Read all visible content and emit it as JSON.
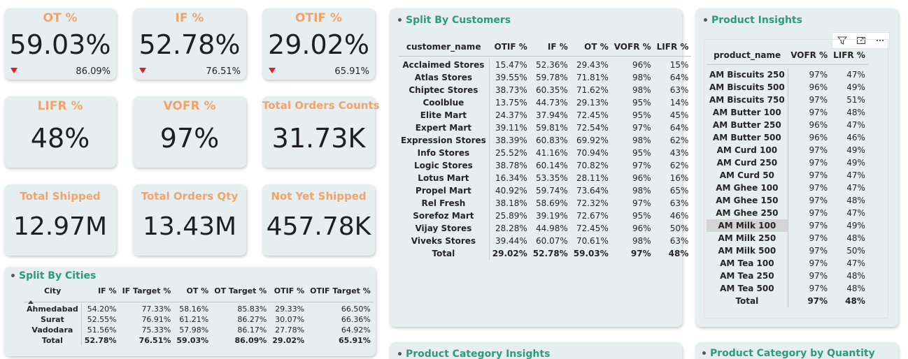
{
  "kpis": {
    "ot": {
      "title": "OT %",
      "value": "59.03%",
      "target": "86.09%"
    },
    "if": {
      "title": "IF %",
      "value": "52.78%",
      "target": "76.51%"
    },
    "otif": {
      "title": "OTIF %",
      "value": "29.02%",
      "target": "65.91%"
    },
    "lifr": {
      "title": "LIFR %",
      "value": "48%"
    },
    "vofr": {
      "title": "VOFR %",
      "value": "97%"
    },
    "total_orders_counts": {
      "title": "Total Orders Counts",
      "value": "31.73K"
    },
    "total_shipped": {
      "title": "Total Shipped",
      "value": "12.97M"
    },
    "total_orders_qty": {
      "title": "Total Orders Qty",
      "value": "13.43M"
    },
    "not_yet_shipped": {
      "title": "Not Yet Shipped",
      "value": "457.78K"
    }
  },
  "colors": {
    "kpi_title": "#f0a46c",
    "visual_title": "#2e9b78",
    "card_bg": "#e7eef0",
    "down_arrow": "#e51c23"
  },
  "split_by_cities": {
    "title": "Split By Cities",
    "headers": [
      "City",
      "IF %",
      "IF Target %",
      "OT %",
      "OT Target %",
      "OTIF %",
      "OTIF Target %"
    ],
    "rows": [
      [
        "Ahmedabad",
        "54.20%",
        "77.33%",
        "58.16%",
        "85.83%",
        "29.33%",
        "66.50%"
      ],
      [
        "Surat",
        "52.55%",
        "76.91%",
        "61.21%",
        "86.27%",
        "30.07%",
        "66.36%"
      ],
      [
        "Vadodara",
        "51.56%",
        "75.33%",
        "57.98%",
        "86.17%",
        "27.78%",
        "64.92%"
      ]
    ],
    "total": [
      "Total",
      "52.78%",
      "76.51%",
      "59.03%",
      "86.09%",
      "29.02%",
      "65.91%"
    ]
  },
  "split_by_customers": {
    "title": "Split By Customers",
    "headers": [
      "customer_name",
      "OTIF %",
      "IF %",
      "OT %",
      "VOFR %",
      "LIFR %"
    ],
    "rows": [
      [
        "Acclaimed Stores",
        "15.47%",
        "52.36%",
        "29.43%",
        "96%",
        "15%"
      ],
      [
        "Atlas Stores",
        "39.55%",
        "59.78%",
        "71.81%",
        "98%",
        "64%"
      ],
      [
        "Chiptec Stores",
        "38.73%",
        "60.35%",
        "71.62%",
        "98%",
        "63%"
      ],
      [
        "Coolblue",
        "13.75%",
        "44.73%",
        "29.13%",
        "95%",
        "14%"
      ],
      [
        "Elite Mart",
        "24.37%",
        "37.94%",
        "72.45%",
        "95%",
        "45%"
      ],
      [
        "Expert Mart",
        "39.11%",
        "59.81%",
        "72.54%",
        "97%",
        "64%"
      ],
      [
        "Expression Stores",
        "38.39%",
        "60.83%",
        "69.92%",
        "98%",
        "62%"
      ],
      [
        "Info Stores",
        "25.52%",
        "41.16%",
        "70.94%",
        "95%",
        "43%"
      ],
      [
        "Logic Stores",
        "38.78%",
        "60.14%",
        "70.82%",
        "97%",
        "62%"
      ],
      [
        "Lotus Mart",
        "16.34%",
        "53.35%",
        "28.11%",
        "96%",
        "16%"
      ],
      [
        "Propel Mart",
        "40.92%",
        "59.74%",
        "73.64%",
        "98%",
        "65%"
      ],
      [
        "Rel Fresh",
        "38.18%",
        "58.69%",
        "72.32%",
        "97%",
        "63%"
      ],
      [
        "Sorefoz Mart",
        "25.89%",
        "39.19%",
        "72.67%",
        "95%",
        "46%"
      ],
      [
        "Vijay Stores",
        "28.28%",
        "44.98%",
        "72.45%",
        "96%",
        "50%"
      ],
      [
        "Viveks Stores",
        "39.44%",
        "60.07%",
        "70.61%",
        "98%",
        "63%"
      ]
    ],
    "total": [
      "Total",
      "29.02%",
      "52.78%",
      "59.03%",
      "97%",
      "48%"
    ]
  },
  "product_insights": {
    "title": "Product Insights",
    "headers": [
      "product_name",
      "VOFR %",
      "LIFR %"
    ],
    "rows": [
      [
        "AM Biscuits 250",
        "97%",
        "47%"
      ],
      [
        "AM Biscuits 500",
        "96%",
        "49%"
      ],
      [
        "AM Biscuits 750",
        "97%",
        "51%"
      ],
      [
        "AM Butter 100",
        "97%",
        "48%"
      ],
      [
        "AM Butter 250",
        "96%",
        "47%"
      ],
      [
        "AM Butter 500",
        "96%",
        "46%"
      ],
      [
        "AM Curd 100",
        "97%",
        "49%"
      ],
      [
        "AM Curd 250",
        "97%",
        "49%"
      ],
      [
        "AM Curd 50",
        "97%",
        "47%"
      ],
      [
        "AM Ghee 100",
        "97%",
        "47%"
      ],
      [
        "AM Ghee 150",
        "97%",
        "48%"
      ],
      [
        "AM Ghee 250",
        "97%",
        "47%"
      ],
      [
        "AM Milk 100",
        "97%",
        "49%"
      ],
      [
        "AM Milk 250",
        "97%",
        "48%"
      ],
      [
        "AM Milk 500",
        "97%",
        "50%"
      ],
      [
        "AM Tea 100",
        "97%",
        "47%"
      ],
      [
        "AM Tea 250",
        "97%",
        "48%"
      ],
      [
        "AM Tea 500",
        "97%",
        "48%"
      ]
    ],
    "total": [
      "Total",
      "97%",
      "48%"
    ],
    "highlighted_row": "AM Milk 100",
    "toolbar_icons": [
      "filter-icon",
      "focus-mode-icon",
      "more-options-icon"
    ]
  },
  "product_category_insights": {
    "title": "Product Category Insights"
  },
  "product_category_by_quantity": {
    "title": "Product Category by Quantity"
  }
}
